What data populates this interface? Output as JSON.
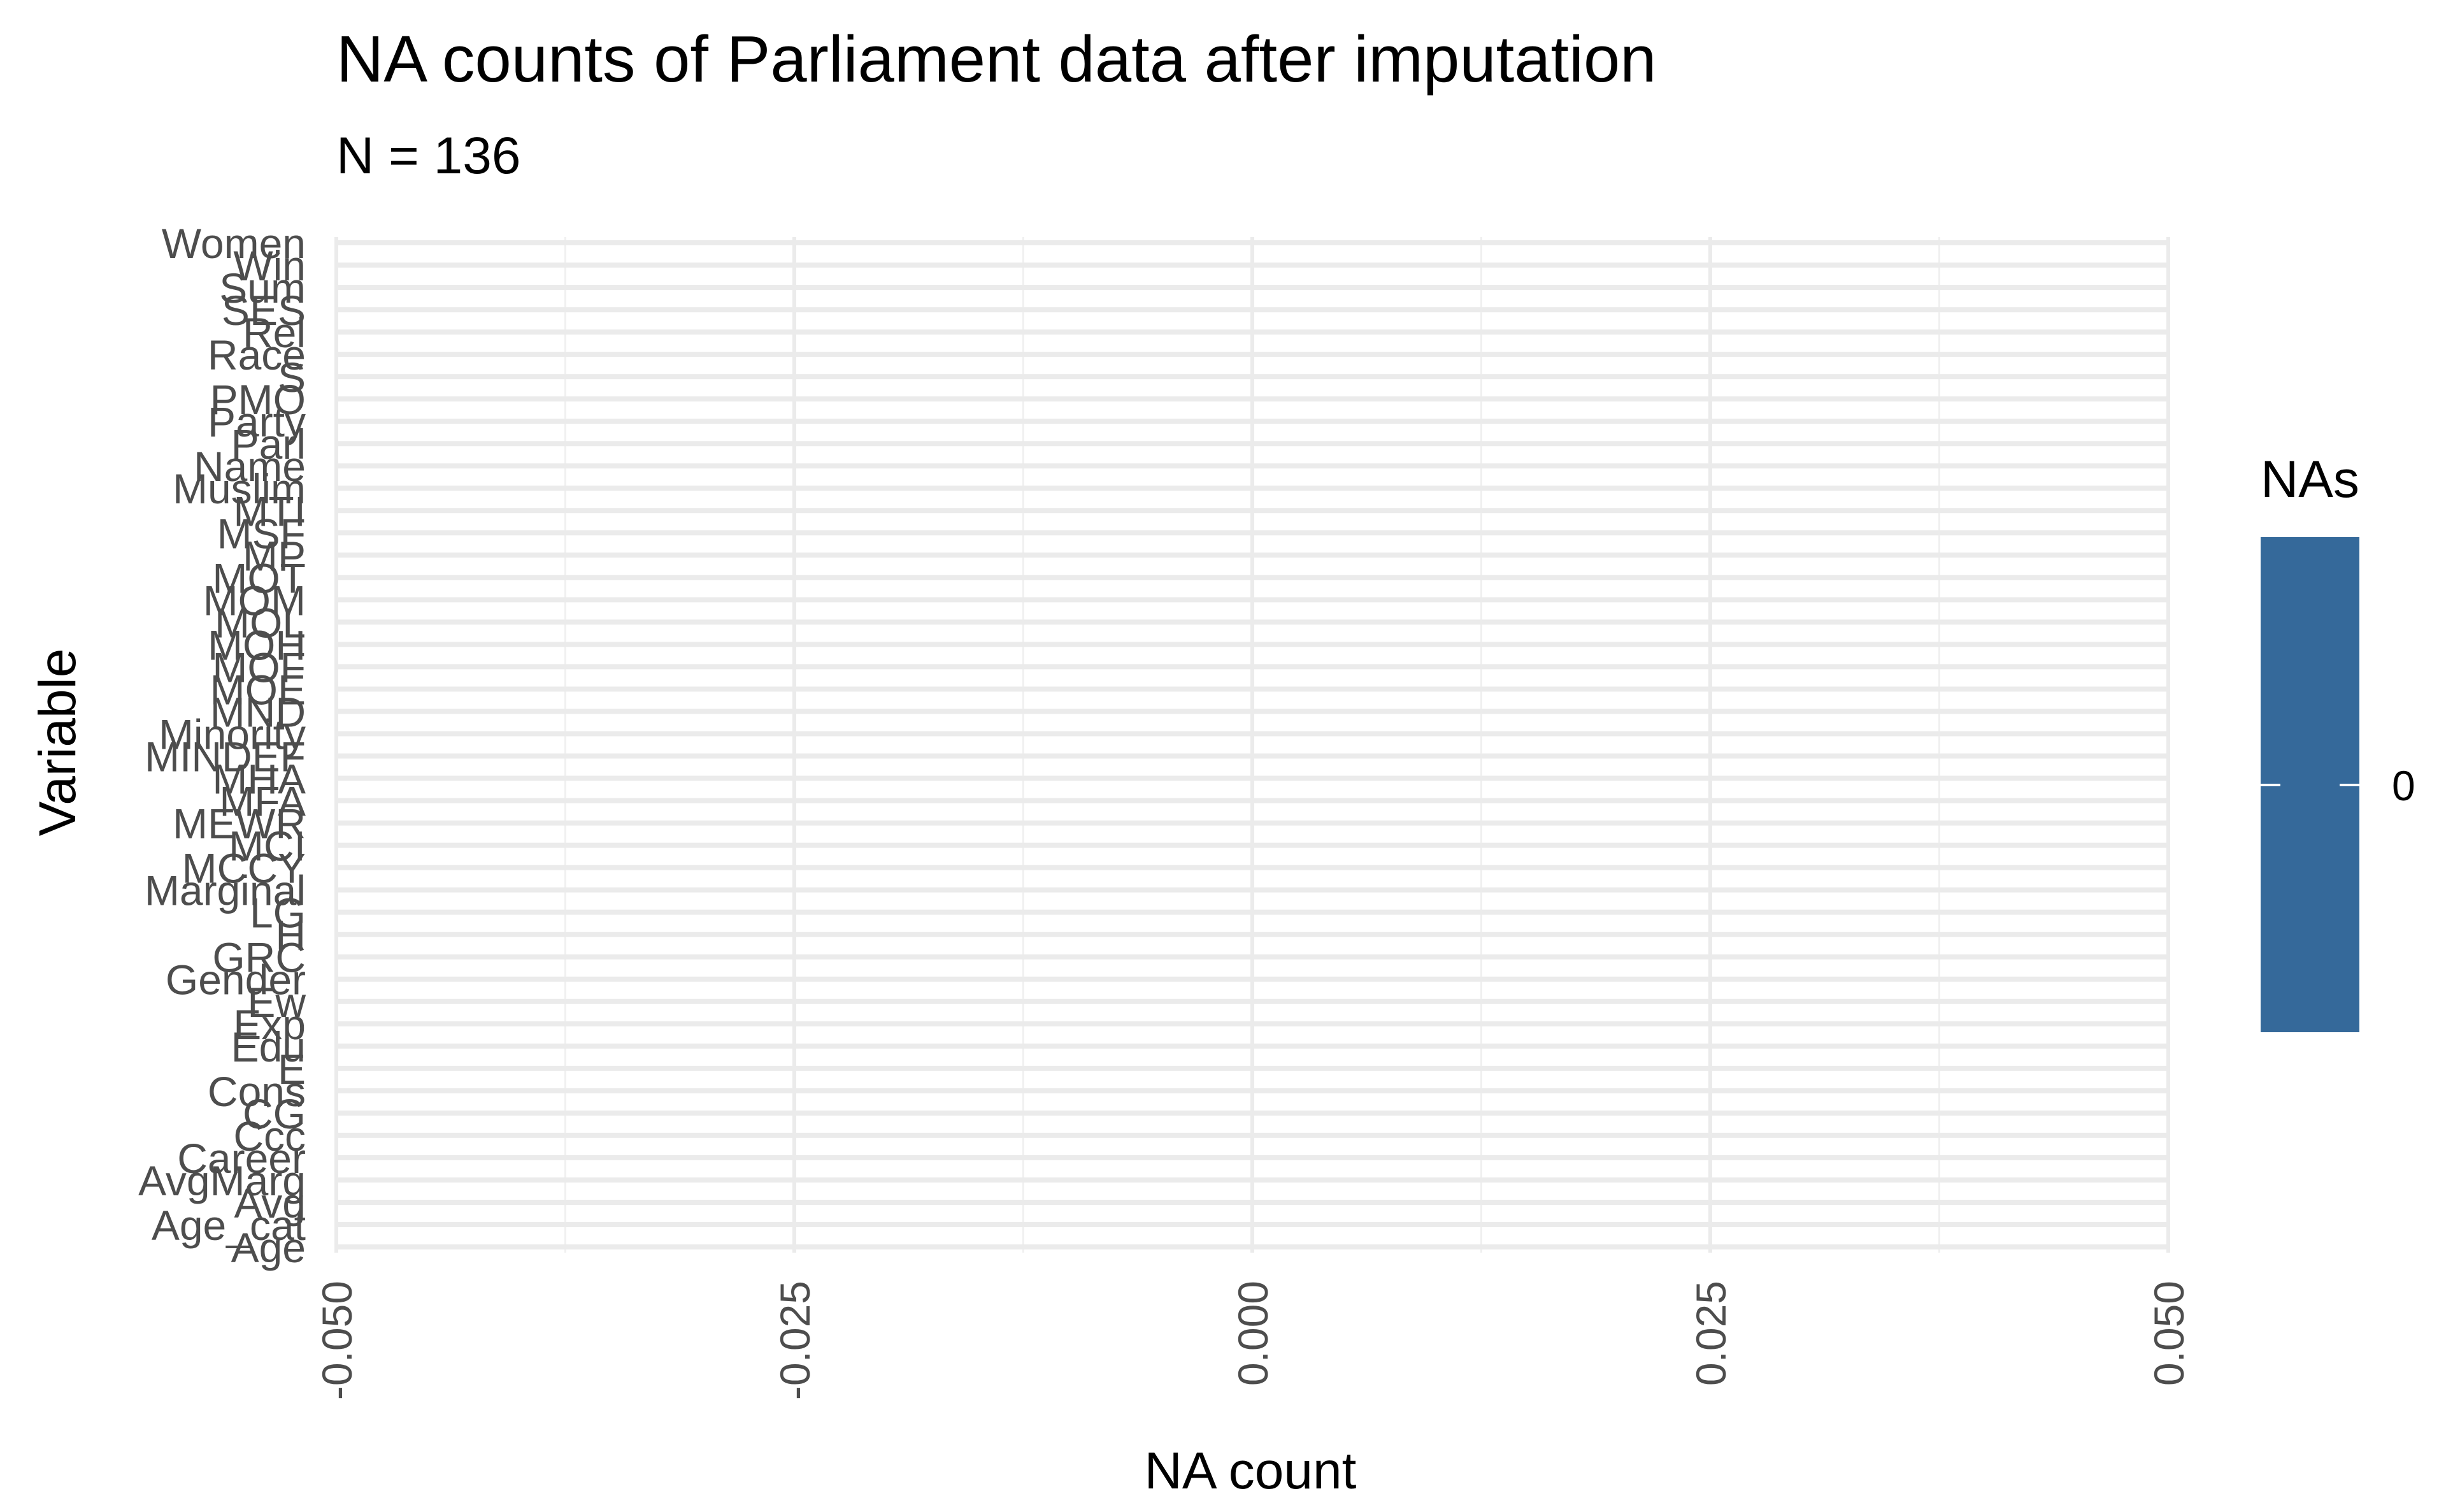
{
  "chart_data": {
    "type": "bar",
    "orientation": "horizontal",
    "title": "NA counts of Parliament data after imputation",
    "subtitle": "N = 136",
    "xlabel": "NA count",
    "ylabel": "Variable",
    "xlim": [
      -0.05,
      0.05
    ],
    "x_ticks": [
      "-0.050",
      "-0.025",
      "0.000",
      "0.025",
      "0.050"
    ],
    "grid": true,
    "legend_title": "NAs",
    "legend_label": "0",
    "legend_placement": "right",
    "bar_color": "#35699a",
    "categories": [
      "Age",
      "Age_cat",
      "Avg",
      "AvgMarg",
      "Career",
      "Ccc",
      "CG",
      "Cons",
      "E",
      "Edu",
      "Exp",
      "Ew",
      "Gender",
      "GRC",
      "H",
      "LG",
      "Marginal",
      "MCCY",
      "MCI",
      "MEWR",
      "MFA",
      "MHA",
      "MINDEF",
      "Minority",
      "MND",
      "MOE",
      "MOF",
      "MOH",
      "MOL",
      "MOM",
      "MOT",
      "MP",
      "MSF",
      "MTI",
      "Muslim",
      "Name",
      "Parl",
      "Party",
      "PMO",
      "S",
      "Race",
      "Rel",
      "SES",
      "Sum",
      "Win",
      "Women"
    ],
    "values": [
      0,
      0,
      0,
      0,
      0,
      0,
      0,
      0,
      0,
      0,
      0,
      0,
      0,
      0,
      0,
      0,
      0,
      0,
      0,
      0,
      0,
      0,
      0,
      0,
      0,
      0,
      0,
      0,
      0,
      0,
      0,
      0,
      0,
      0,
      0,
      0,
      0,
      0,
      0,
      0,
      0,
      0,
      0,
      0,
      0,
      0
    ]
  }
}
